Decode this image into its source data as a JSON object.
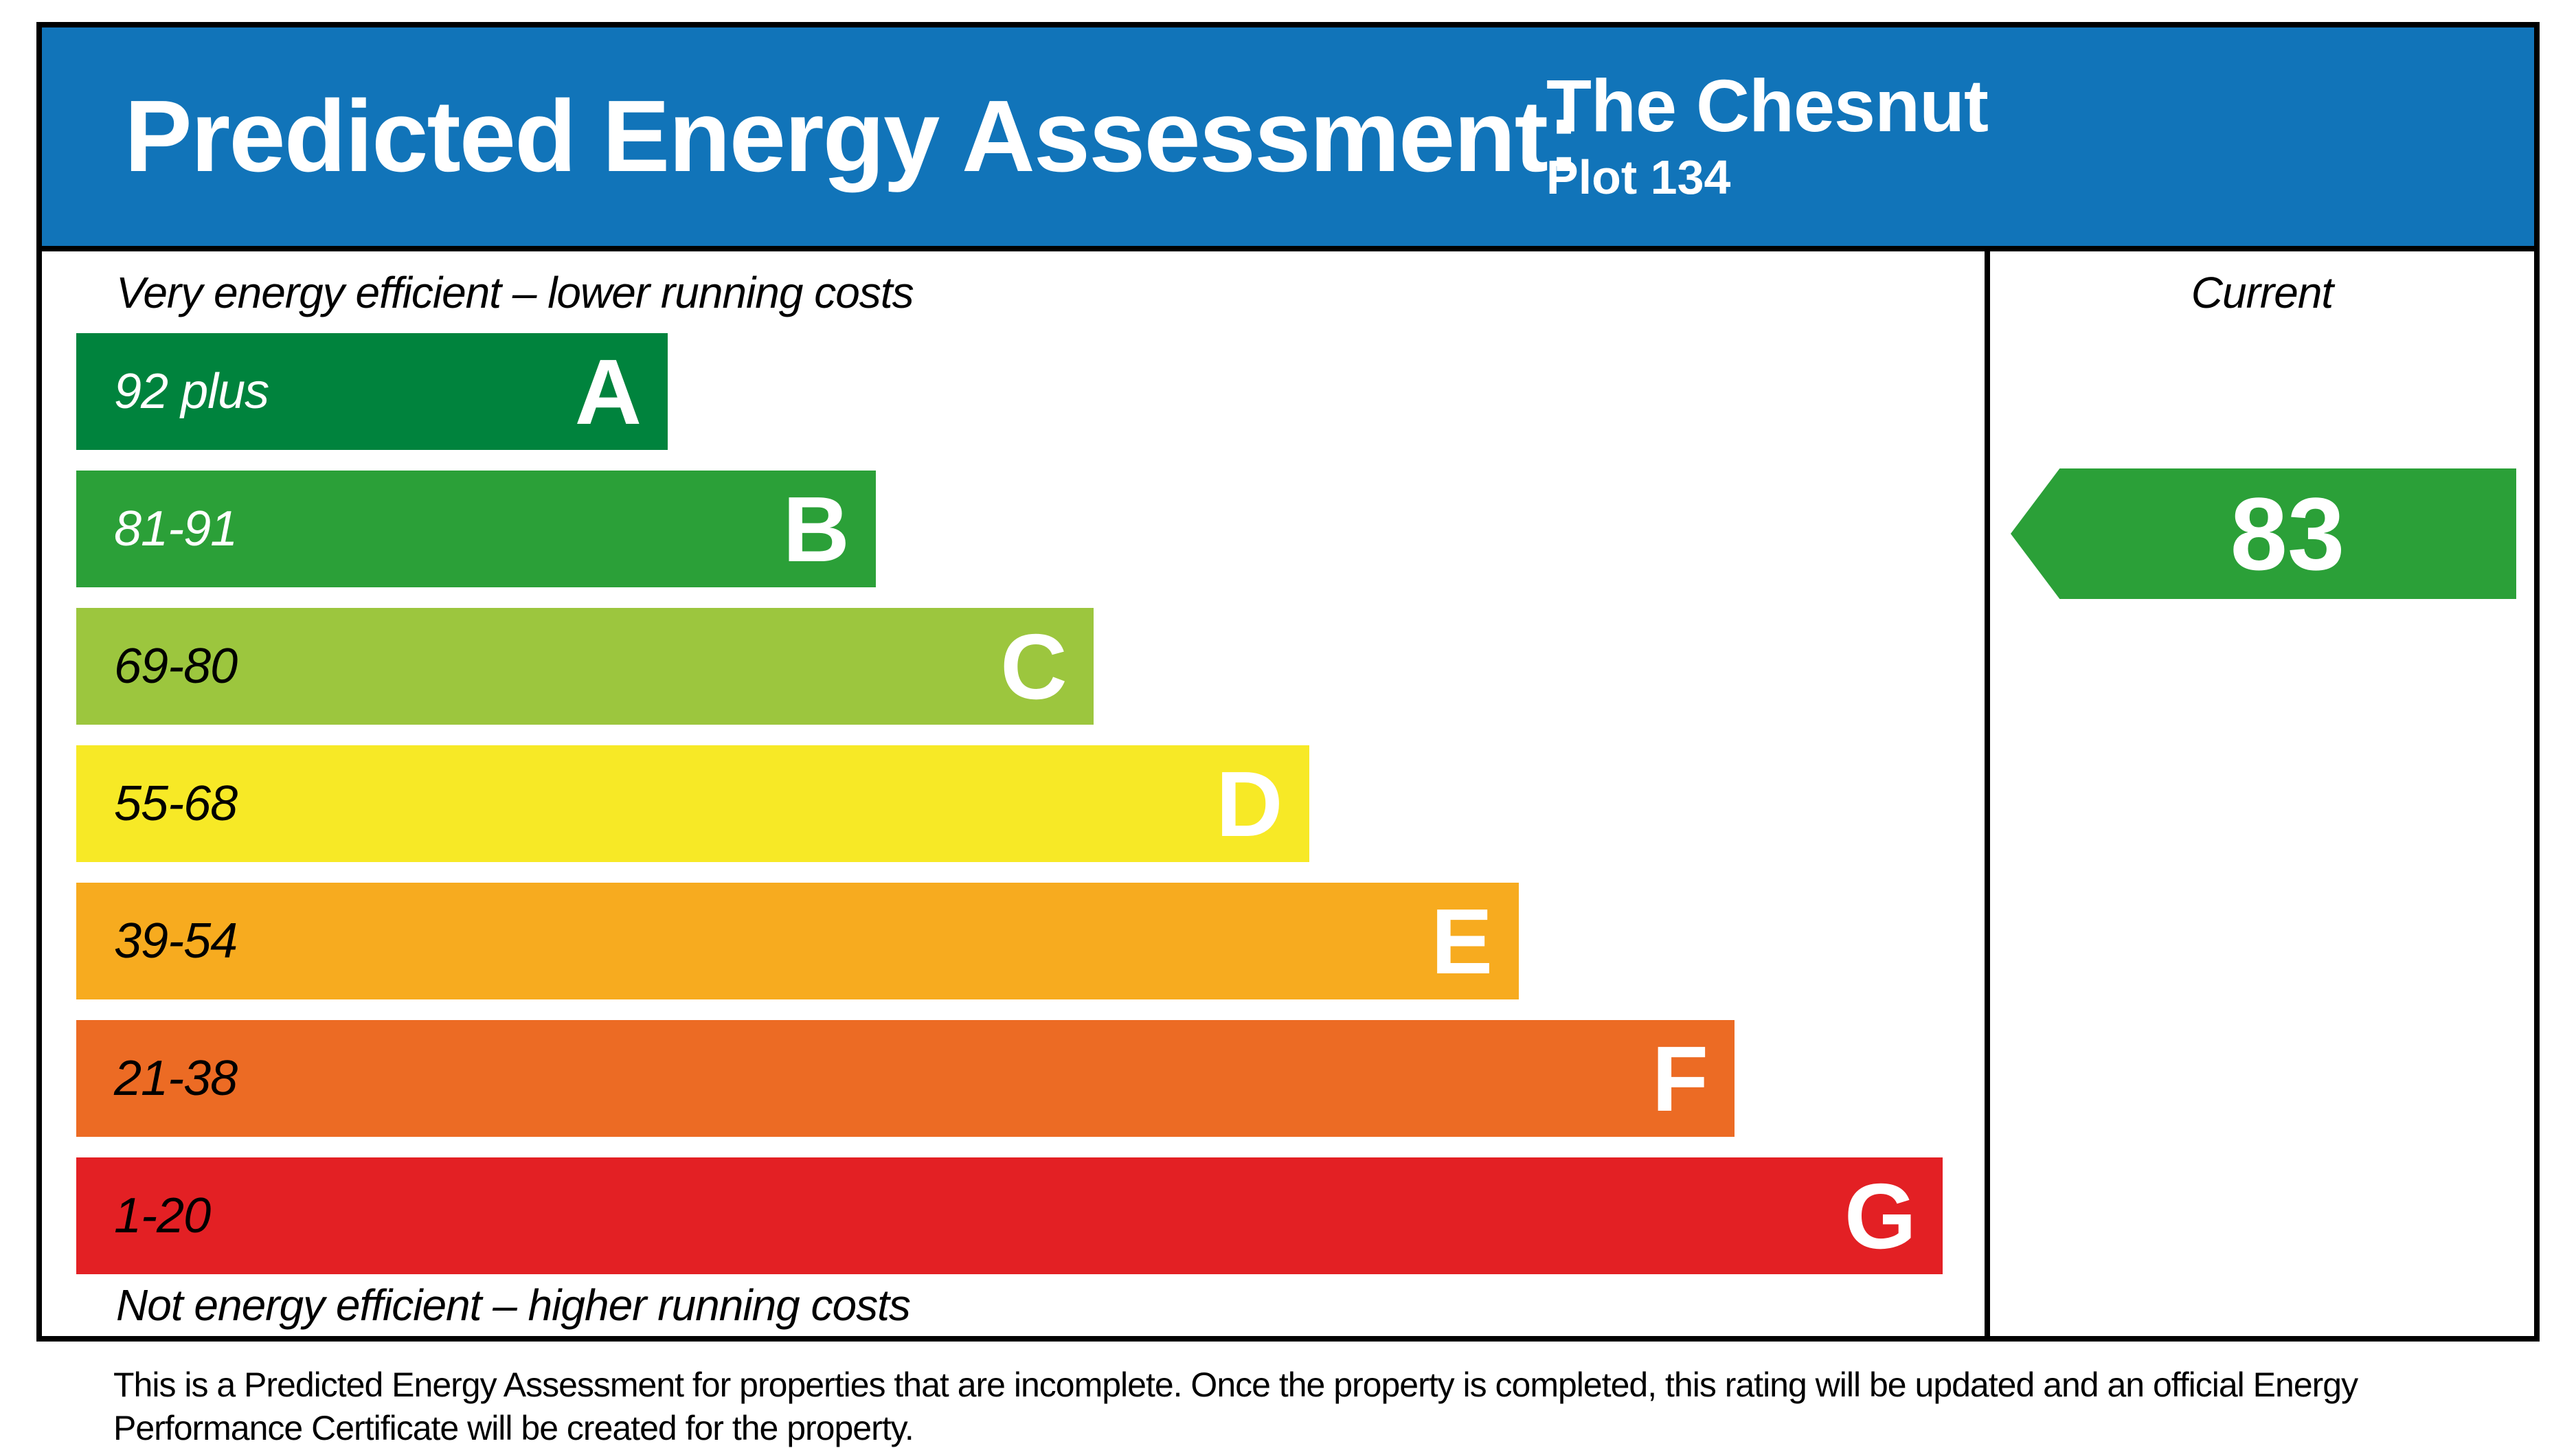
{
  "header": {
    "title": "Predicted Energy Assessment:",
    "property_name": "The Chesnut",
    "plot": "Plot 134",
    "background_color": "#1174B9"
  },
  "labels": {
    "top": "Very energy efficient – lower running costs",
    "bottom": "Not energy efficient – higher running costs"
  },
  "bands": [
    {
      "letter": "A",
      "range": "92 plus",
      "color": "#00833D",
      "width_pct": 31.0
    },
    {
      "letter": "B",
      "range": "81-91",
      "color": "#2BA038",
      "width_pct": 41.9
    },
    {
      "letter": "C",
      "range": "69-80",
      "color": "#9CC63E",
      "width_pct": 53.3
    },
    {
      "letter": "D",
      "range": "55-68",
      "color": "#F7E926",
      "width_pct": 64.6
    },
    {
      "letter": "E",
      "range": "39-54",
      "color": "#F7AB1F",
      "width_pct": 75.6
    },
    {
      "letter": "F",
      "range": "21-38",
      "color": "#EC6B24",
      "width_pct": 86.9
    },
    {
      "letter": "G",
      "range": "1-20",
      "color": "#E32024",
      "width_pct": 97.8
    }
  ],
  "current": {
    "label": "Current",
    "value": "83",
    "band": "B",
    "color": "#2BA038"
  },
  "footer": {
    "text": "This is a Predicted Energy Assessment for properties that are incomplete. Once the property is completed, this rating will be updated and an official Energy Performance Certificate will be created for the property."
  },
  "chart_data": {
    "type": "bar",
    "title": "Predicted Energy Assessment: The Chesnut, Plot 134",
    "categories": [
      "A",
      "B",
      "C",
      "D",
      "E",
      "F",
      "G"
    ],
    "band_ranges": [
      "92 plus",
      "81-91",
      "69-80",
      "55-68",
      "39-54",
      "21-38",
      "1-20"
    ],
    "bar_length_pct": [
      31,
      42,
      53,
      65,
      76,
      87,
      98
    ],
    "band_colors": [
      "#00833D",
      "#2BA038",
      "#9CC63E",
      "#F7E926",
      "#F7AB1F",
      "#EC6B24",
      "#E32024"
    ],
    "current_rating": 83,
    "current_band": "B",
    "xlabel_top": "Very energy efficient – lower running costs",
    "xlabel_bottom": "Not energy efficient – higher running costs",
    "legend_position": "right-column",
    "grid": false
  }
}
